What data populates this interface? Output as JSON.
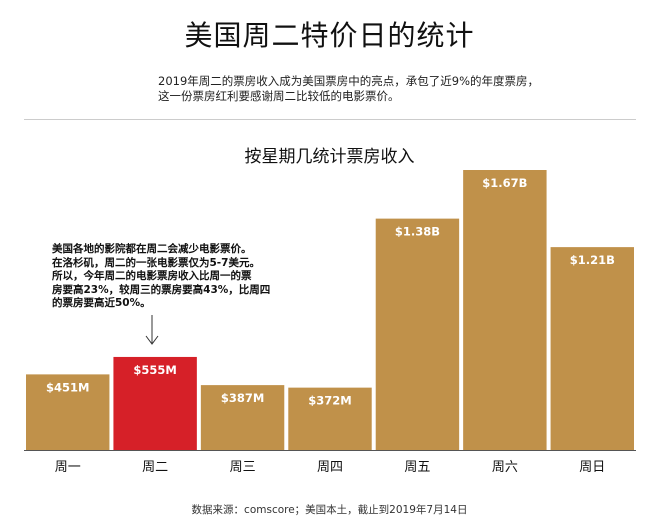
{
  "title": "美国周二特价日的统计",
  "subtitle_lines": [
    "2019年周二的票房收入成为美国票房中的亮点，承包了近9%的年度票房，",
    "这一份票房红利要感谢周二比较低的电影票价。"
  ],
  "annotation_lines": [
    "美国各地的影院都在周二会减少电影票价。",
    "在洛杉矶，周二的一张电影票仅为5-7美元。",
    "所以，今年周二的电影票房收入比周一的票",
    "房要高23%，较周三的票房要高43%，比周四",
    "的票房要高近50%。"
  ],
  "annotation_arrow": "↓",
  "source": "数据来源：comscore；美国本土，截止到2019年7月14日",
  "colors": {
    "bar": "#C0914A",
    "highlight": "#D62028",
    "label": "#ffffff"
  },
  "chart_data": {
    "type": "bar",
    "title": "按星期几统计票房收入",
    "xlabel": "",
    "ylabel": "",
    "unit": "billion USD",
    "ylim": [
      0,
      1.67
    ],
    "categories": [
      "周一",
      "周二",
      "周三",
      "周四",
      "周五",
      "周六",
      "周日"
    ],
    "values": [
      0.451,
      0.555,
      0.387,
      0.372,
      1.38,
      1.67,
      1.21
    ],
    "value_labels": [
      "$451M",
      "$555M",
      "$387M",
      "$372M",
      "$1.38B",
      "$1.67B",
      "$1.21B"
    ],
    "highlight_index": 1,
    "grid": false,
    "legend": "none"
  }
}
